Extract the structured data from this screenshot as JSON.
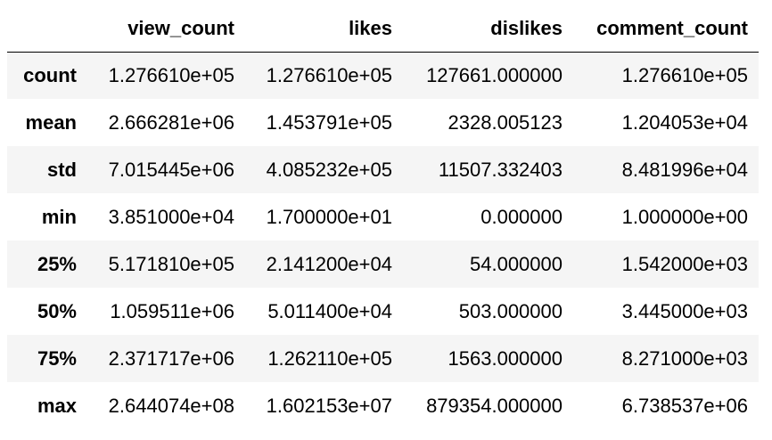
{
  "table": {
    "index_header": "",
    "columns": [
      "view_count",
      "likes",
      "dislikes",
      "comment_count"
    ],
    "rows": [
      {
        "label": "count",
        "values": [
          "1.276610e+05",
          "1.276610e+05",
          "127661.000000",
          "1.276610e+05"
        ]
      },
      {
        "label": "mean",
        "values": [
          "2.666281e+06",
          "1.453791e+05",
          "2328.005123",
          "1.204053e+04"
        ]
      },
      {
        "label": "std",
        "values": [
          "7.015445e+06",
          "4.085232e+05",
          "11507.332403",
          "8.481996e+04"
        ]
      },
      {
        "label": "min",
        "values": [
          "3.851000e+04",
          "1.700000e+01",
          "0.000000",
          "1.000000e+00"
        ]
      },
      {
        "label": "25%",
        "values": [
          "5.171810e+05",
          "2.141200e+04",
          "54.000000",
          "1.542000e+03"
        ]
      },
      {
        "label": "50%",
        "values": [
          "1.059511e+06",
          "5.011400e+04",
          "503.000000",
          "3.445000e+03"
        ]
      },
      {
        "label": "75%",
        "values": [
          "2.371717e+06",
          "1.262110e+05",
          "1563.000000",
          "8.271000e+03"
        ]
      },
      {
        "label": "max",
        "values": [
          "2.644074e+08",
          "1.602153e+07",
          "879354.000000",
          "6.738537e+06"
        ]
      }
    ]
  },
  "colors": {
    "striped_row": "#f5f5f5",
    "background": "#ffffff",
    "text": "#000000"
  }
}
